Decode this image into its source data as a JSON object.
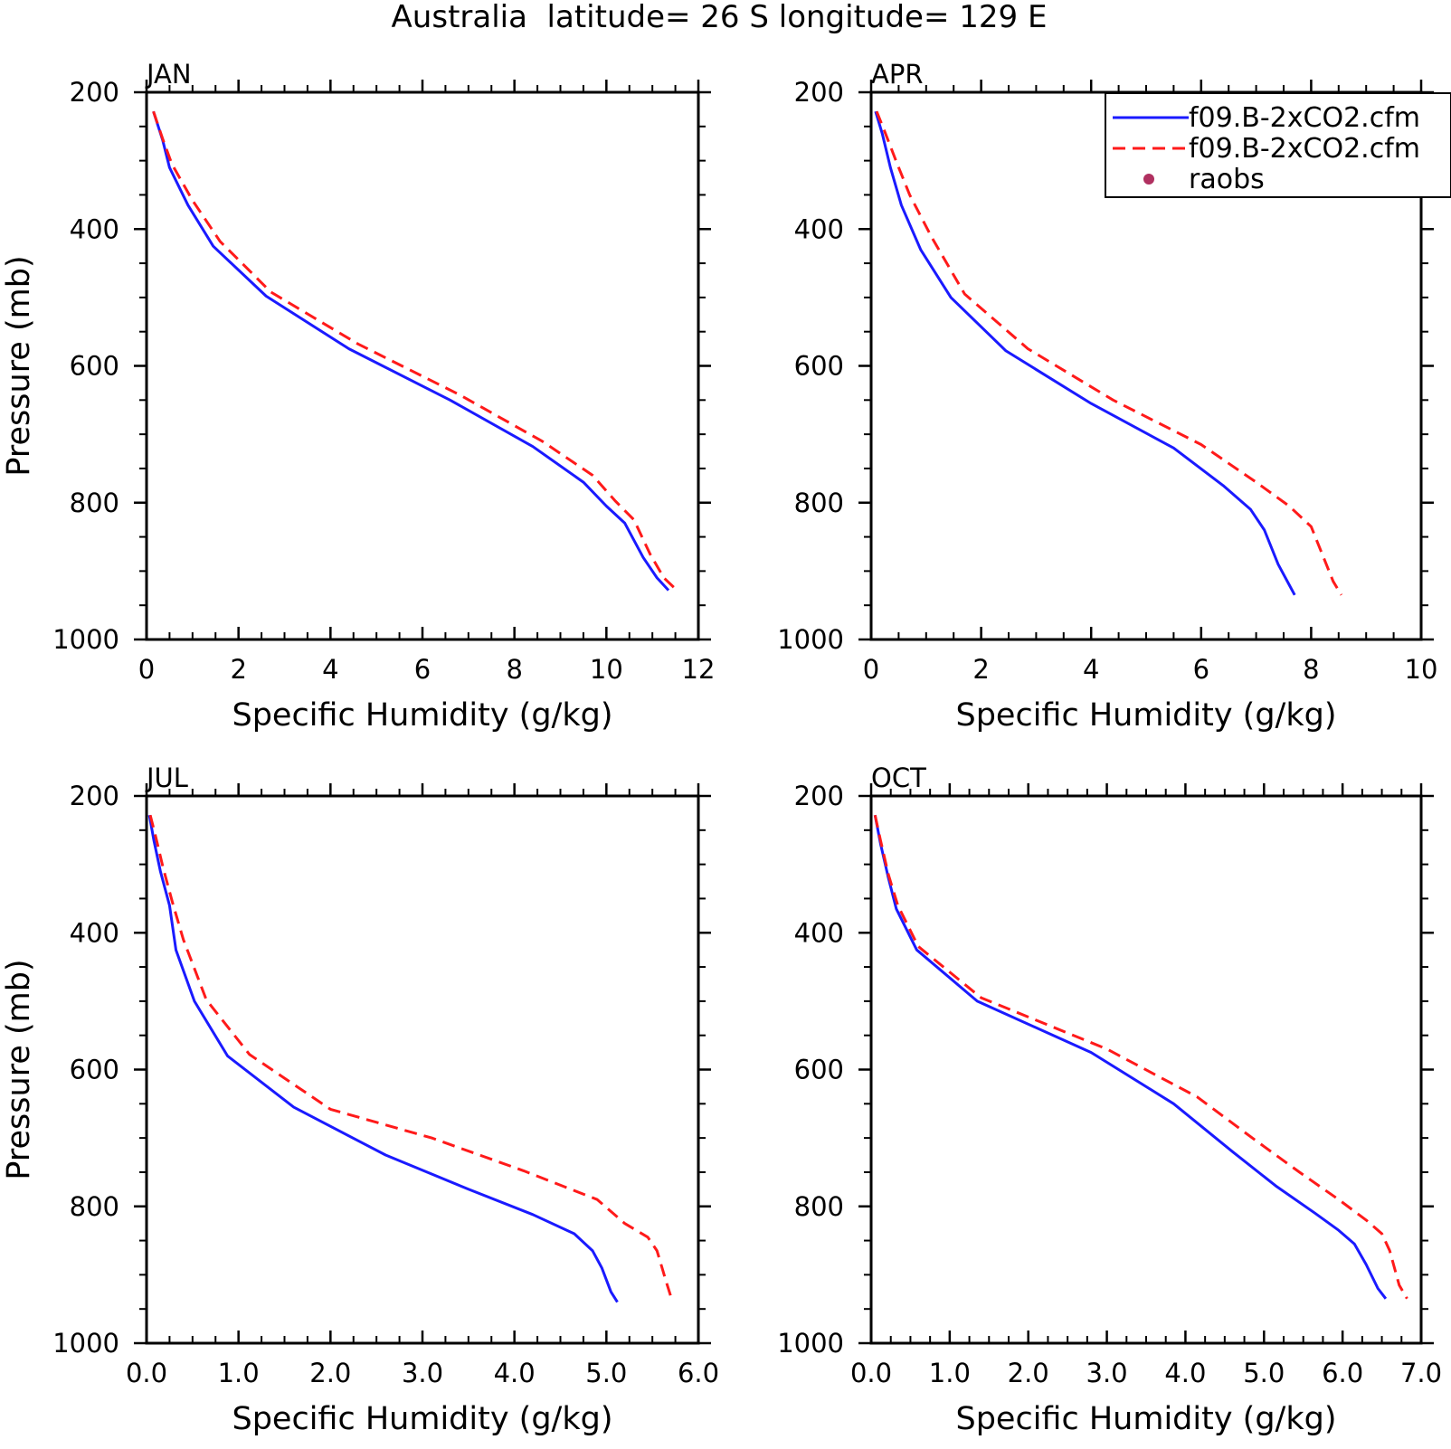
{
  "title": "Australia  latitude= 26 S longitude= 129 E",
  "colors": {
    "series1": "#1a1aff",
    "series2": "#ff1a1a",
    "marker": "#b03060"
  },
  "legend": {
    "entries": [
      {
        "label": "f09.B-2xCO2.cfm",
        "style": "solid",
        "color": "#1a1aff"
      },
      {
        "label": "f09.B-2xCO2.cfm",
        "style": "dashed",
        "color": "#ff1a1a"
      },
      {
        "label": "raobs",
        "style": "dot",
        "color": "#b03060"
      }
    ]
  },
  "chart_data": [
    {
      "type": "line",
      "panel": "JAN",
      "xlabel": "Specific Humidity (g/kg)",
      "ylabel": "Pressure (mb)",
      "xlim": [
        0,
        12
      ],
      "ylim": [
        200,
        1000
      ],
      "xticks": [
        "0",
        "2",
        "4",
        "6",
        "8",
        "10",
        "12"
      ],
      "yticks": [
        "200",
        "400",
        "600",
        "800",
        "1000"
      ],
      "series": [
        {
          "style": "solid",
          "color": "#1a1aff",
          "x": [
            0.15,
            0.35,
            0.5,
            0.9,
            1.45,
            2.6,
            4.4,
            6.6,
            8.4,
            9.5,
            10.0,
            10.4,
            10.8,
            11.1,
            11.35
          ],
          "y": [
            228,
            270,
            310,
            365,
            425,
            498,
            575,
            650,
            718,
            770,
            805,
            830,
            880,
            910,
            928
          ]
        },
        {
          "style": "dashed",
          "color": "#ff1a1a",
          "x": [
            0.15,
            0.35,
            0.55,
            1.0,
            1.6,
            2.7,
            4.6,
            6.8,
            8.6,
            9.7,
            10.2,
            10.6,
            10.95,
            11.25,
            11.5
          ],
          "y": [
            228,
            268,
            305,
            358,
            418,
            492,
            568,
            642,
            710,
            760,
            798,
            825,
            875,
            910,
            926
          ]
        }
      ]
    },
    {
      "type": "line",
      "panel": "APR",
      "xlabel": "Specific Humidity (g/kg)",
      "ylabel": "",
      "xlim": [
        0,
        10
      ],
      "ylim": [
        200,
        1000
      ],
      "xticks": [
        "0",
        "2",
        "4",
        "6",
        "8",
        "10"
      ],
      "yticks": [
        "200",
        "400",
        "600",
        "800",
        "1000"
      ],
      "series": [
        {
          "style": "solid",
          "color": "#1a1aff",
          "x": [
            0.08,
            0.2,
            0.35,
            0.55,
            0.9,
            1.45,
            2.45,
            4.0,
            5.5,
            6.4,
            6.9,
            7.15,
            7.4,
            7.6,
            7.7
          ],
          "y": [
            228,
            260,
            310,
            365,
            430,
            500,
            578,
            655,
            720,
            775,
            810,
            840,
            890,
            920,
            935
          ]
        },
        {
          "style": "dashed",
          "color": "#ff1a1a",
          "x": [
            0.1,
            0.25,
            0.45,
            0.7,
            1.1,
            1.7,
            2.85,
            4.4,
            6.0,
            7.0,
            7.6,
            8.0,
            8.2,
            8.4,
            8.55
          ],
          "y": [
            228,
            258,
            300,
            350,
            412,
            495,
            575,
            650,
            715,
            770,
            805,
            835,
            875,
            915,
            935
          ]
        }
      ]
    },
    {
      "type": "line",
      "panel": "JUL",
      "xlabel": "Specific Humidity (g/kg)",
      "ylabel": "Pressure (mb)",
      "xlim": [
        0,
        6
      ],
      "ylim": [
        200,
        1000
      ],
      "xticks": [
        "0.0",
        "1.0",
        "2.0",
        "3.0",
        "4.0",
        "5.0",
        "6.0"
      ],
      "yticks": [
        "200",
        "400",
        "600",
        "800",
        "1000"
      ],
      "series": [
        {
          "style": "solid",
          "color": "#1a1aff",
          "x": [
            0.03,
            0.08,
            0.15,
            0.25,
            0.32,
            0.52,
            0.88,
            1.6,
            2.6,
            3.5,
            4.2,
            4.65,
            4.85,
            4.95,
            5.05,
            5.12
          ],
          "y": [
            228,
            265,
            310,
            360,
            425,
            500,
            580,
            655,
            725,
            775,
            812,
            840,
            865,
            890,
            925,
            940
          ]
        },
        {
          "style": "dashed",
          "color": "#ff1a1a",
          "x": [
            0.04,
            0.1,
            0.18,
            0.28,
            0.4,
            0.65,
            1.12,
            2.0,
            3.1,
            4.1,
            4.9,
            5.2,
            5.45,
            5.55,
            5.65,
            5.72
          ],
          "y": [
            228,
            260,
            305,
            355,
            410,
            498,
            578,
            658,
            700,
            748,
            790,
            825,
            845,
            865,
            910,
            940
          ]
        }
      ]
    },
    {
      "type": "line",
      "panel": "OCT",
      "xlabel": "Specific Humidity (g/kg)",
      "ylabel": "",
      "xlim": [
        0,
        7
      ],
      "ylim": [
        200,
        1000
      ],
      "xticks": [
        "0.0",
        "1.0",
        "2.0",
        "3.0",
        "4.0",
        "5.0",
        "6.0",
        "7.0"
      ],
      "yticks": [
        "200",
        "400",
        "600",
        "800",
        "1000"
      ],
      "series": [
        {
          "style": "solid",
          "color": "#1a1aff",
          "x": [
            0.05,
            0.12,
            0.22,
            0.32,
            0.58,
            1.35,
            2.8,
            3.85,
            4.6,
            5.15,
            5.65,
            5.95,
            6.15,
            6.3,
            6.45,
            6.55
          ],
          "y": [
            228,
            270,
            320,
            365,
            425,
            500,
            575,
            650,
            720,
            770,
            810,
            835,
            855,
            885,
            920,
            935
          ]
        },
        {
          "style": "dashed",
          "color": "#ff1a1a",
          "x": [
            0.05,
            0.12,
            0.22,
            0.34,
            0.6,
            1.4,
            3.0,
            4.15,
            4.85,
            5.45,
            5.95,
            6.3,
            6.5,
            6.6,
            6.72,
            6.82
          ],
          "y": [
            228,
            265,
            315,
            360,
            420,
            495,
            570,
            640,
            700,
            750,
            790,
            820,
            840,
            865,
            915,
            935
          ]
        }
      ]
    }
  ]
}
